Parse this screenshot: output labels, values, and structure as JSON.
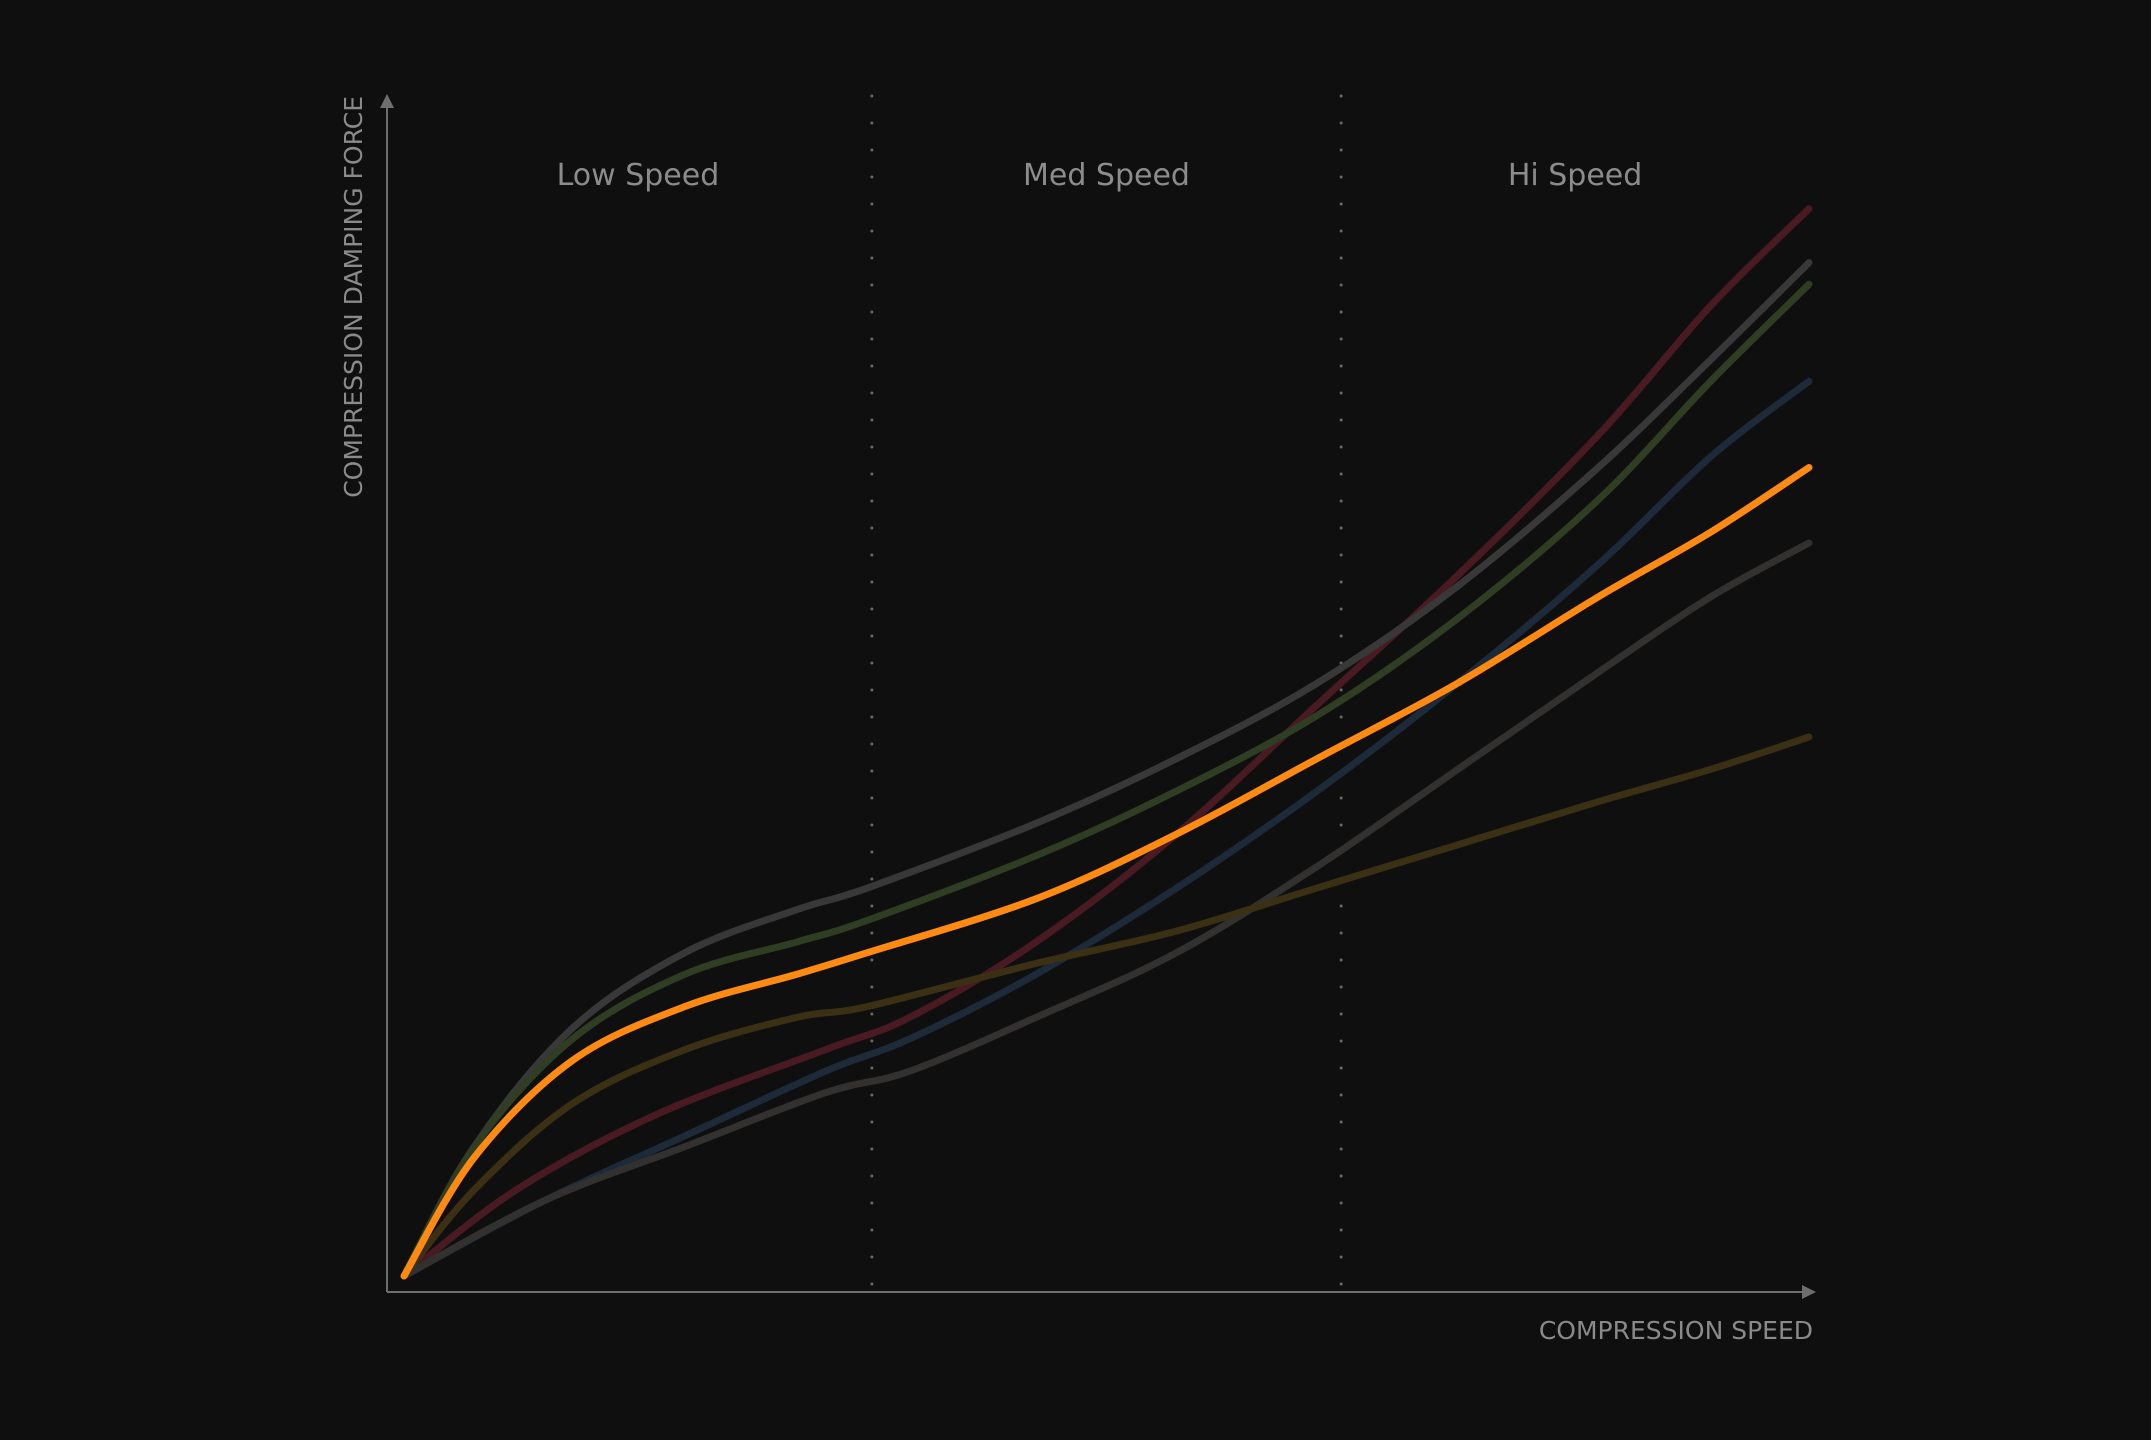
{
  "chart_data": {
    "type": "line",
    "xlabel": "COMPRESSION SPEED",
    "ylabel": "COMPRESSION DAMPING FORCE",
    "xlim": [
      0,
      1
    ],
    "ylim": [
      0,
      1
    ],
    "grid": false,
    "zones": [
      {
        "label": "Low Speed",
        "from": 0.0,
        "to": 0.333
      },
      {
        "label": "Med Speed",
        "from": 0.333,
        "to": 0.667
      },
      {
        "label": "Hi Speed",
        "from": 0.667,
        "to": 1.0
      }
    ],
    "highlight_color": "#ff8a12",
    "series": [
      {
        "color": "#4a1a22",
        "highlight": false,
        "x": [
          0,
          0.08,
          0.18,
          0.3,
          0.36,
          0.45,
          0.55,
          0.65,
          0.75,
          0.85,
          0.93,
          1.0
        ],
        "y": [
          0,
          0.08,
          0.15,
          0.21,
          0.24,
          0.31,
          0.41,
          0.53,
          0.65,
          0.78,
          0.9,
          0.99
        ]
      },
      {
        "color": "#383838",
        "highlight": false,
        "x": [
          0,
          0.05,
          0.12,
          0.2,
          0.28,
          0.33,
          0.45,
          0.55,
          0.65,
          0.75,
          0.85,
          0.93,
          1.0
        ],
        "y": [
          0,
          0.12,
          0.23,
          0.3,
          0.34,
          0.36,
          0.42,
          0.48,
          0.55,
          0.64,
          0.75,
          0.85,
          0.94
        ]
      },
      {
        "color": "#2f3d22",
        "highlight": false,
        "x": [
          0,
          0.05,
          0.12,
          0.2,
          0.28,
          0.33,
          0.45,
          0.55,
          0.65,
          0.75,
          0.85,
          0.93,
          1.0
        ],
        "y": [
          0,
          0.12,
          0.22,
          0.28,
          0.31,
          0.33,
          0.39,
          0.45,
          0.52,
          0.61,
          0.72,
          0.83,
          0.92
        ]
      },
      {
        "color": "#1c2a3a",
        "highlight": false,
        "x": [
          0,
          0.1,
          0.2,
          0.3,
          0.36,
          0.45,
          0.55,
          0.65,
          0.75,
          0.85,
          0.93,
          1.0
        ],
        "y": [
          0,
          0.07,
          0.13,
          0.19,
          0.22,
          0.28,
          0.36,
          0.45,
          0.55,
          0.66,
          0.76,
          0.83
        ]
      },
      {
        "color": "#ff8a12",
        "highlight": true,
        "x": [
          0,
          0.05,
          0.12,
          0.2,
          0.28,
          0.33,
          0.45,
          0.55,
          0.65,
          0.75,
          0.85,
          0.93,
          1.0
        ],
        "y": [
          0,
          0.11,
          0.2,
          0.25,
          0.28,
          0.3,
          0.35,
          0.41,
          0.48,
          0.55,
          0.63,
          0.69,
          0.75
        ]
      },
      {
        "color": "#333130",
        "highlight": false,
        "x": [
          0,
          0.1,
          0.2,
          0.3,
          0.36,
          0.45,
          0.55,
          0.65,
          0.75,
          0.85,
          0.93,
          1.0
        ],
        "y": [
          0,
          0.07,
          0.12,
          0.17,
          0.19,
          0.24,
          0.3,
          0.38,
          0.47,
          0.56,
          0.63,
          0.68
        ]
      },
      {
        "color": "#3b3014",
        "highlight": false,
        "x": [
          0,
          0.05,
          0.12,
          0.2,
          0.28,
          0.33,
          0.45,
          0.55,
          0.65,
          0.75,
          0.85,
          0.93,
          1.0
        ],
        "y": [
          0,
          0.08,
          0.16,
          0.21,
          0.24,
          0.25,
          0.29,
          0.32,
          0.36,
          0.4,
          0.44,
          0.47,
          0.5
        ]
      }
    ]
  }
}
